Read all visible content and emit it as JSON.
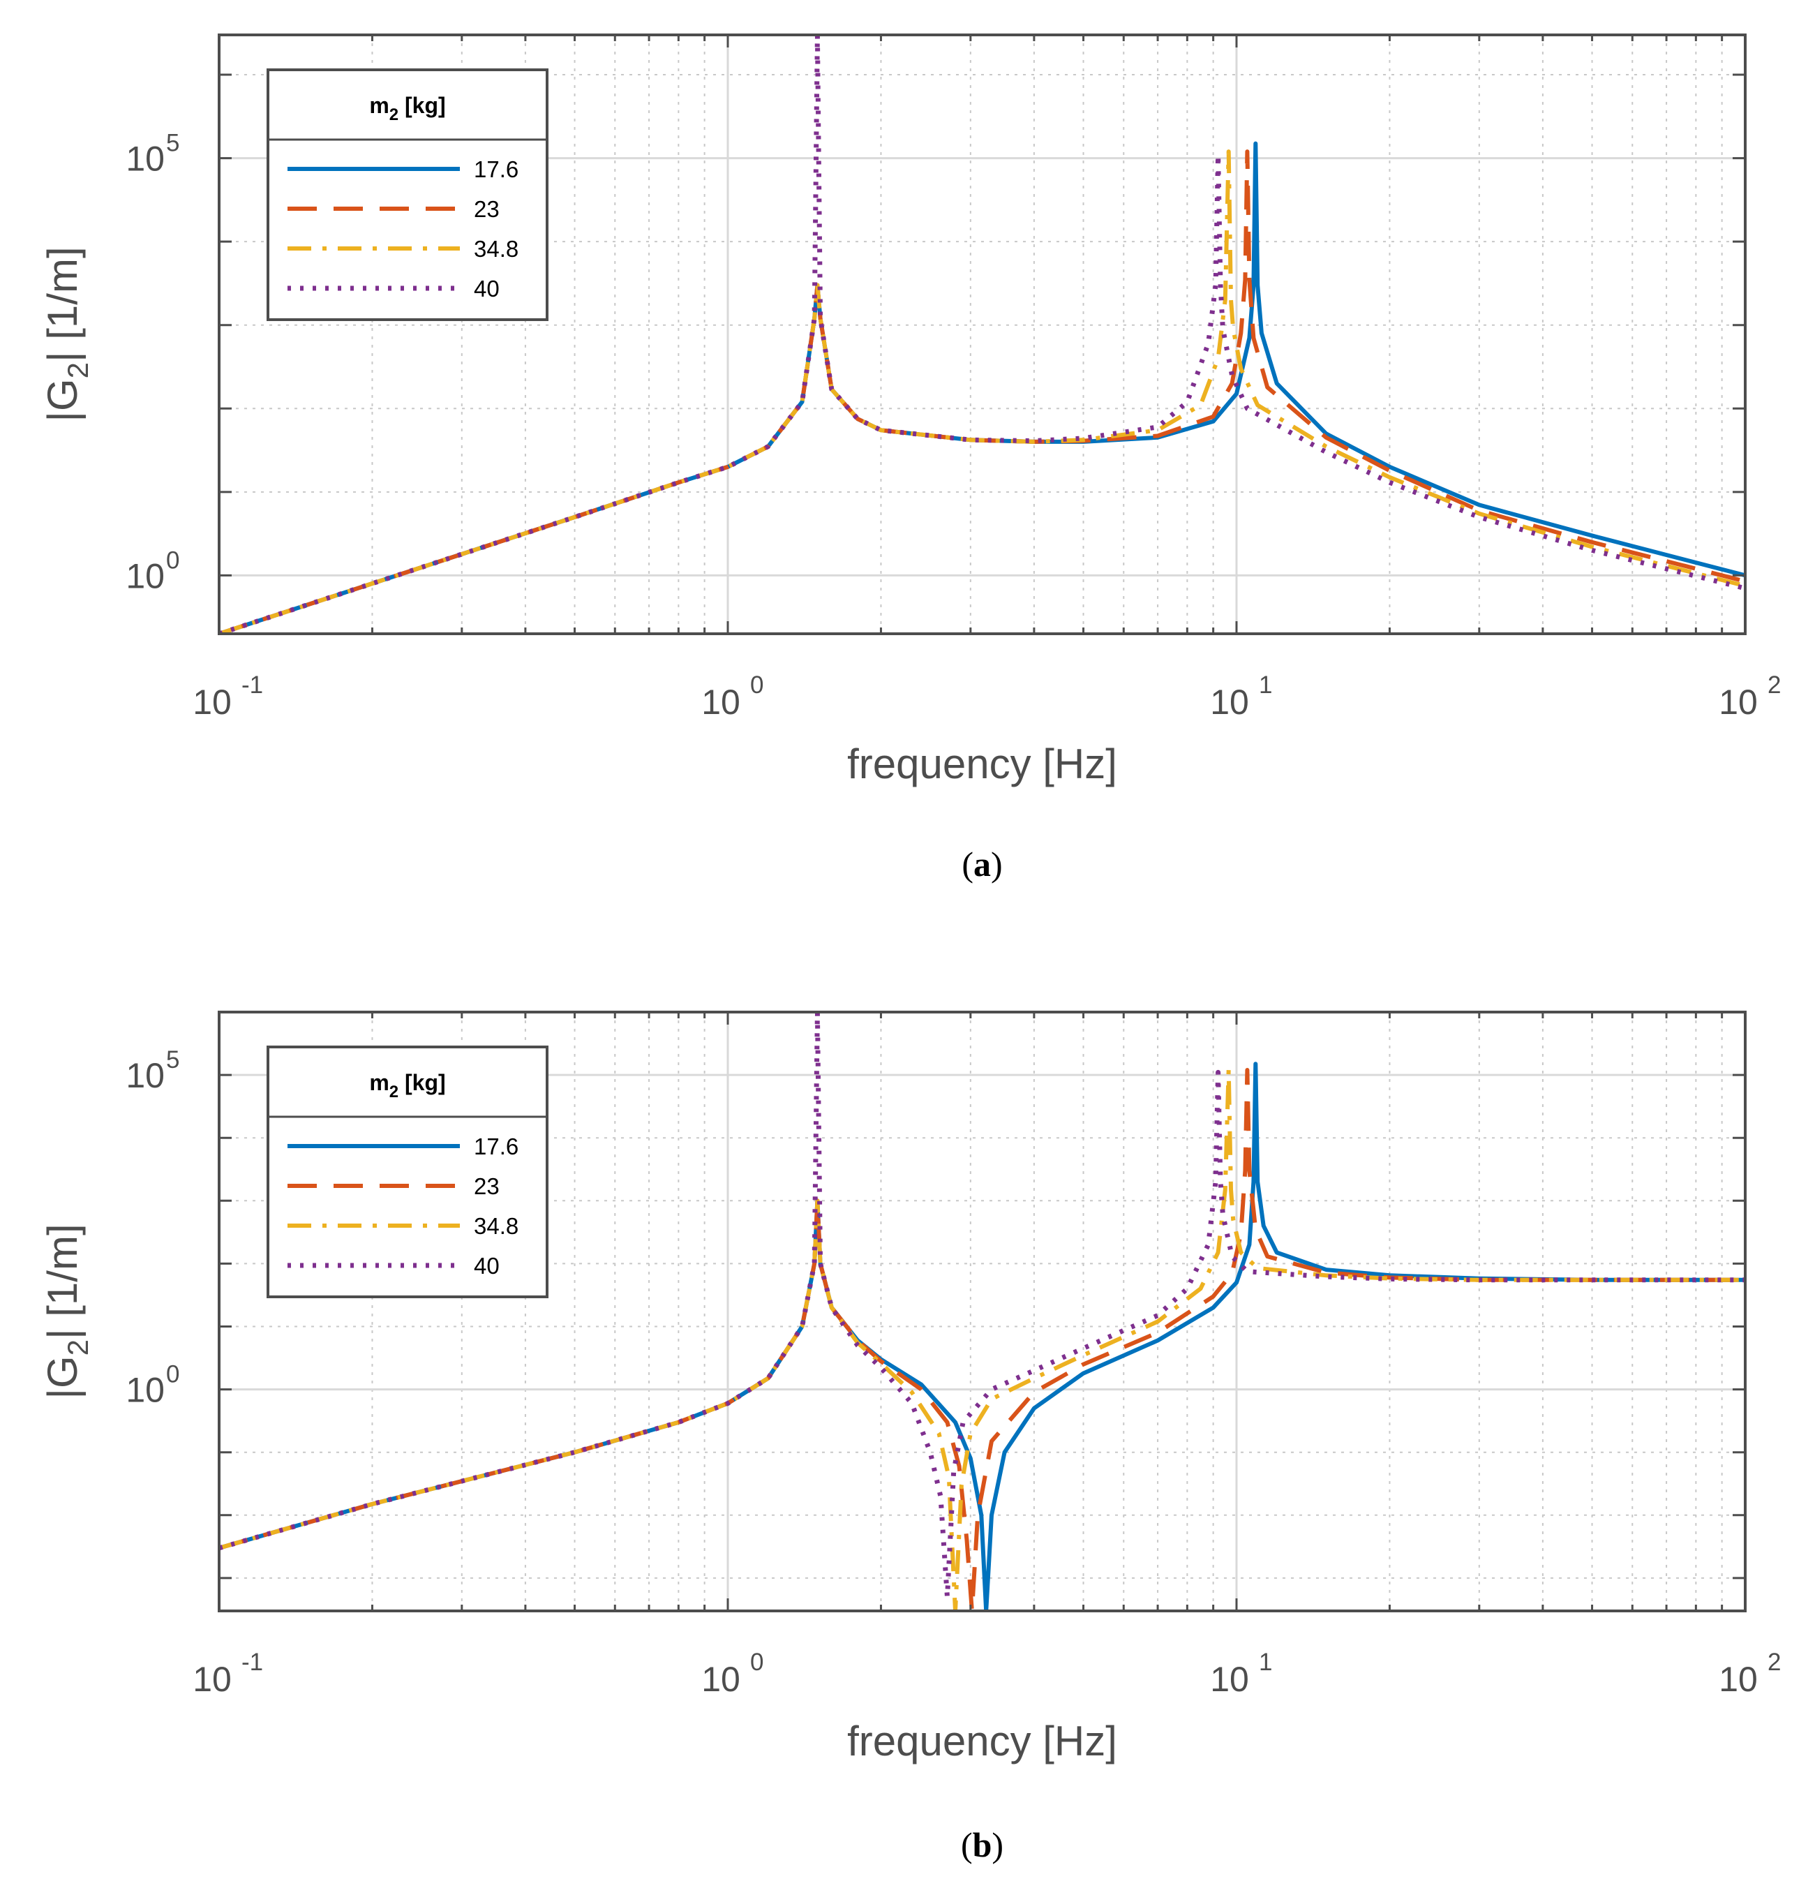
{
  "colors": {
    "series": [
      "#0072BD",
      "#D95319",
      "#EDB120",
      "#7E2F8E"
    ],
    "axis": "#4d4d4d",
    "grid_major": "#d9d9d9",
    "grid_minor": "#c8c8c8"
  },
  "chart_data": [
    {
      "id": "a",
      "type": "line",
      "caption": "a",
      "xlabel": "frequency [Hz]",
      "ylabel": "|G2| [1/m]",
      "xscale": "log",
      "yscale": "log",
      "xlim": [
        0.1,
        100
      ],
      "ylim": [
        0.2,
        3000000
      ],
      "xticks": [
        {
          "base": "10",
          "exp": "-1",
          "value": 0.1
        },
        {
          "base": "10",
          "exp": "0",
          "value": 1
        },
        {
          "base": "10",
          "exp": "1",
          "value": 10
        },
        {
          "base": "10",
          "exp": "2",
          "value": 100
        }
      ],
      "yticks": [
        {
          "base": "10",
          "exp": "0",
          "value": 1
        },
        {
          "base": "10",
          "exp": "5",
          "value": 100000
        }
      ],
      "grid": true,
      "legend": {
        "title": "m2 [kg]",
        "location": "top-left",
        "entries": [
          "17.6",
          "23",
          "34.8",
          "40"
        ]
      },
      "series": [
        {
          "name": "17.6",
          "style": "solid",
          "x": [
            0.1,
            0.2,
            0.5,
            0.8,
            1.0,
            1.2,
            1.4,
            1.48,
            1.5,
            1.52,
            1.6,
            1.8,
            2.0,
            3.0,
            4.0,
            5.0,
            7.0,
            9.0,
            10.0,
            10.6,
            10.8,
            10.9,
            11.0,
            11.2,
            12.0,
            15.0,
            20.0,
            30.0,
            50.0,
            100.0
          ],
          "y": [
            0.2,
            0.8,
            5.0,
            13.0,
            20.0,
            35.0,
            120.0,
            1200.0,
            3000.0,
            1200.0,
            170.0,
            75.0,
            55.0,
            42.0,
            40.0,
            40.0,
            45.0,
            70.0,
            150.0,
            700.0,
            3000.0,
            150000.0,
            3000.0,
            800.0,
            200.0,
            50.0,
            20.0,
            7.0,
            3.0,
            1.0
          ]
        },
        {
          "name": "23",
          "style": "dashed",
          "x": [
            0.1,
            0.2,
            0.5,
            0.8,
            1.0,
            1.2,
            1.4,
            1.48,
            1.5,
            1.52,
            1.6,
            1.8,
            2.0,
            3.0,
            4.0,
            5.0,
            7.0,
            9.0,
            9.8,
            10.2,
            10.4,
            10.5,
            10.6,
            10.8,
            11.5,
            15.0,
            20.0,
            30.0,
            50.0,
            100.0
          ],
          "y": [
            0.2,
            0.8,
            5.0,
            13.0,
            20.0,
            35.0,
            120.0,
            1200.0,
            3000.0,
            1200.0,
            170.0,
            75.0,
            55.0,
            42.0,
            40.0,
            41.0,
            47.0,
            80.0,
            200.0,
            800.0,
            3500.0,
            120000.0,
            3500.0,
            700.0,
            180.0,
            45.0,
            18.0,
            6.0,
            2.5,
            0.85
          ]
        },
        {
          "name": "34.8",
          "style": "dashdot",
          "x": [
            0.1,
            0.2,
            0.5,
            0.8,
            1.0,
            1.2,
            1.4,
            1.48,
            1.5,
            1.52,
            1.6,
            1.8,
            2.0,
            3.0,
            4.0,
            5.0,
            7.0,
            8.5,
            9.2,
            9.5,
            9.65,
            9.75,
            9.85,
            10.2,
            11.0,
            15.0,
            20.0,
            30.0,
            50.0,
            100.0
          ],
          "y": [
            0.2,
            0.8,
            5.0,
            13.0,
            20.0,
            35.0,
            120.0,
            1200.0,
            3000.0,
            1200.0,
            170.0,
            75.0,
            55.0,
            42.0,
            40.0,
            42.0,
            55.0,
            110.0,
            400.0,
            2000.0,
            120000.0,
            2000.0,
            900.0,
            300.0,
            110.0,
            35.0,
            15.0,
            5.5,
            2.2,
            0.75
          ]
        },
        {
          "name": "40",
          "style": "dotted",
          "x": [
            0.1,
            0.2,
            0.5,
            0.8,
            1.0,
            1.2,
            1.4,
            1.48,
            1.5,
            1.52,
            1.6,
            1.8,
            2.0,
            3.0,
            4.0,
            5.0,
            7.0,
            8.0,
            8.8,
            9.1,
            9.2,
            9.3,
            9.4,
            9.8,
            10.5,
            15.0,
            20.0,
            30.0,
            50.0,
            100.0
          ],
          "y": [
            0.2,
            0.8,
            5.0,
            13.0,
            20.0,
            35.0,
            120.0,
            1200.0,
            3000000.0,
            1200.0,
            170.0,
            75.0,
            55.0,
            42.0,
            41.0,
            44.0,
            60.0,
            120.0,
            600.0,
            3000.0,
            110000.0,
            3000.0,
            900.0,
            250.0,
            100.0,
            30.0,
            13.0,
            5.0,
            2.0,
            0.7
          ]
        }
      ]
    },
    {
      "id": "b",
      "type": "line",
      "caption": "b",
      "xlabel": "frequency [Hz]",
      "ylabel": "|G2| [1/m]",
      "xscale": "log",
      "yscale": "log",
      "xlim": [
        0.1,
        100
      ],
      "ylim": [
        0.0003,
        1000000
      ],
      "xticks": [
        {
          "base": "10",
          "exp": "-1",
          "value": 0.1
        },
        {
          "base": "10",
          "exp": "0",
          "value": 1
        },
        {
          "base": "10",
          "exp": "1",
          "value": 10
        },
        {
          "base": "10",
          "exp": "2",
          "value": 100
        }
      ],
      "yticks": [
        {
          "base": "10",
          "exp": "0",
          "value": 1
        },
        {
          "base": "10",
          "exp": "5",
          "value": 100000
        }
      ],
      "grid": true,
      "legend": {
        "title": "m2 [kg]",
        "location": "top-left",
        "entries": [
          "17.6",
          "23",
          "34.8",
          "40"
        ]
      },
      "series": [
        {
          "name": "17.6",
          "style": "solid",
          "x": [
            0.1,
            0.2,
            0.5,
            0.8,
            1.0,
            1.2,
            1.4,
            1.48,
            1.5,
            1.52,
            1.6,
            1.8,
            2.0,
            2.4,
            2.8,
            3.0,
            3.15,
            3.22,
            3.3,
            3.5,
            4.0,
            5.0,
            7.0,
            9.0,
            10.0,
            10.6,
            10.8,
            10.9,
            11.0,
            11.3,
            12.0,
            15.0,
            20.0,
            30.0,
            50.0,
            100.0
          ],
          "y": [
            0.003,
            0.015,
            0.1,
            0.3,
            0.6,
            1.5,
            10.0,
            100.0,
            1000.0,
            100.0,
            20.0,
            6.0,
            3.0,
            1.2,
            0.3,
            0.08,
            0.01,
            0.0003,
            0.01,
            0.1,
            0.5,
            1.8,
            6.0,
            20.0,
            50.0,
            200.0,
            2000.0,
            150000.0,
            2000.0,
            400.0,
            150.0,
            80.0,
            65.0,
            58.0,
            55.0,
            55.0
          ]
        },
        {
          "name": "23",
          "style": "dashed",
          "x": [
            0.1,
            0.2,
            0.5,
            0.8,
            1.0,
            1.2,
            1.4,
            1.48,
            1.5,
            1.52,
            1.6,
            1.8,
            2.0,
            2.4,
            2.7,
            2.85,
            2.95,
            3.02,
            3.1,
            3.3,
            4.0,
            5.0,
            7.0,
            9.0,
            9.8,
            10.2,
            10.4,
            10.5,
            10.6,
            10.9,
            11.5,
            15.0,
            20.0,
            30.0,
            50.0,
            100.0
          ],
          "y": [
            0.003,
            0.015,
            0.1,
            0.3,
            0.6,
            1.5,
            10.0,
            100.0,
            1000.0,
            100.0,
            20.0,
            6.0,
            2.8,
            1.0,
            0.3,
            0.06,
            0.004,
            0.0003,
            0.01,
            0.15,
            0.9,
            2.5,
            8.0,
            30.0,
            70.0,
            300.0,
            3000.0,
            120000.0,
            3000.0,
            350.0,
            130.0,
            72.0,
            60.0,
            55.0,
            55.0,
            55.0
          ]
        },
        {
          "name": "34.8",
          "style": "dashdot",
          "x": [
            0.1,
            0.2,
            0.5,
            0.8,
            1.0,
            1.2,
            1.4,
            1.48,
            1.5,
            1.52,
            1.6,
            1.8,
            2.0,
            2.3,
            2.6,
            2.72,
            2.8,
            2.88,
            3.0,
            3.3,
            4.0,
            5.0,
            7.0,
            8.5,
            9.2,
            9.5,
            9.65,
            9.75,
            9.85,
            10.2,
            11.0,
            15.0,
            20.0,
            30.0,
            50.0,
            100.0
          ],
          "y": [
            0.003,
            0.015,
            0.1,
            0.3,
            0.6,
            1.5,
            10.0,
            100.0,
            1000.0,
            100.0,
            20.0,
            5.5,
            2.6,
            0.9,
            0.2,
            0.04,
            0.0003,
            0.03,
            0.2,
            0.7,
            1.5,
            3.5,
            12.0,
            40.0,
            150.0,
            1500.0,
            120000.0,
            1500.0,
            500.0,
            150.0,
            85.0,
            65.0,
            58.0,
            55.0,
            55.0,
            55.0
          ]
        },
        {
          "name": "40",
          "style": "dotted",
          "x": [
            0.1,
            0.2,
            0.5,
            0.8,
            1.0,
            1.2,
            1.4,
            1.48,
            1.5,
            1.52,
            1.6,
            1.8,
            2.0,
            2.3,
            2.5,
            2.62,
            2.7,
            2.78,
            2.9,
            3.3,
            4.0,
            5.0,
            7.0,
            8.0,
            8.8,
            9.1,
            9.2,
            9.3,
            9.4,
            9.8,
            10.5,
            15.0,
            20.0,
            30.0,
            50.0,
            100.0
          ],
          "y": [
            0.003,
            0.015,
            0.1,
            0.3,
            0.6,
            1.5,
            10.0,
            100.0,
            1000000.0,
            100.0,
            20.0,
            5.0,
            2.2,
            0.6,
            0.1,
            0.02,
            0.0005,
            0.05,
            0.3,
            1.0,
            2.0,
            4.5,
            15.0,
            40.0,
            200.0,
            2000.0,
            110000.0,
            2000.0,
            600.0,
            130.0,
            75.0,
            62.0,
            57.0,
            55.0,
            55.0,
            55.0
          ]
        }
      ]
    }
  ]
}
